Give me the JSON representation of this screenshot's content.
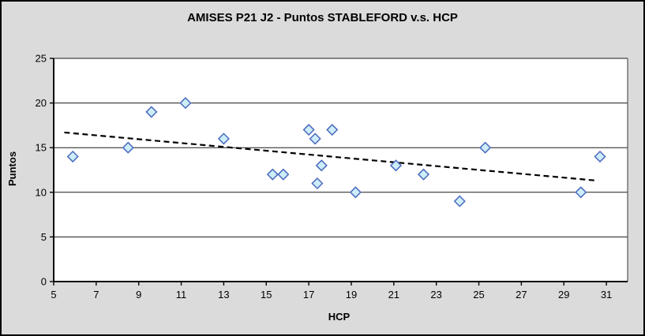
{
  "chart_data": {
    "type": "scatter",
    "title": "AMISES P21 J2 - Puntos STABLEFORD v.s. HCP",
    "xlabel": "HCP",
    "ylabel": "Puntos",
    "xlim": [
      5,
      32
    ],
    "ylim": [
      0,
      25
    ],
    "x_ticks": [
      5,
      7,
      9,
      11,
      13,
      15,
      17,
      19,
      21,
      23,
      25,
      27,
      29,
      31
    ],
    "y_ticks": [
      0,
      5,
      10,
      15,
      20,
      25
    ],
    "grid": "horizontal-only",
    "legend": "none",
    "series": [
      {
        "name": "Puntos STABLEFORD",
        "marker": "diamond",
        "points": [
          [
            5.9,
            14
          ],
          [
            8.5,
            15
          ],
          [
            9.6,
            19
          ],
          [
            11.2,
            20
          ],
          [
            13.0,
            16
          ],
          [
            15.3,
            12
          ],
          [
            15.8,
            12
          ],
          [
            17.0,
            17
          ],
          [
            17.3,
            16
          ],
          [
            17.4,
            11
          ],
          [
            17.6,
            13
          ],
          [
            18.1,
            17
          ],
          [
            19.2,
            10
          ],
          [
            21.1,
            13
          ],
          [
            22.4,
            12
          ],
          [
            24.1,
            9
          ],
          [
            25.3,
            15
          ],
          [
            29.8,
            10
          ],
          [
            30.7,
            14
          ]
        ]
      }
    ],
    "trendline": {
      "style": "dashed",
      "points": [
        [
          5.5,
          16.7
        ],
        [
          30.6,
          11.3
        ]
      ]
    },
    "colors": {
      "chart_background": "#DBDBDB",
      "plot_background": "#FFFFFF",
      "gridline": "#1A1A1A",
      "axis": "#000000",
      "plot_border": "#555555",
      "marker_fill": "#CDEDF8",
      "marker_stroke": "#4A69BD",
      "trendline": "#000000",
      "text": "#000000"
    }
  }
}
